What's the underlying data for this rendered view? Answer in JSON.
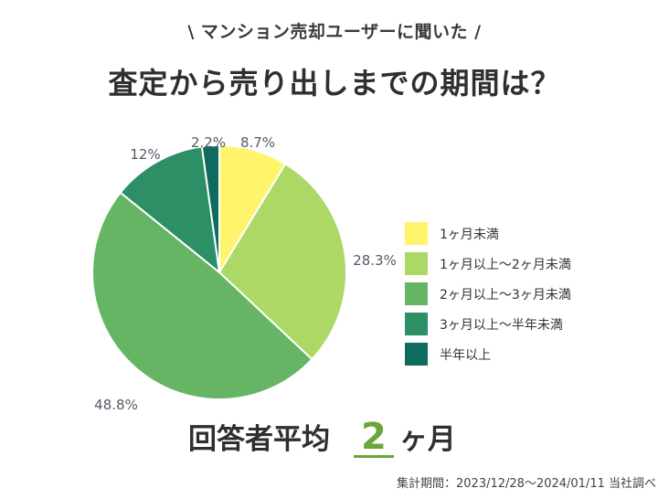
{
  "header": {
    "subtitle": "\\ マンション売却ユーザーに聞いた /",
    "title": "査定から売り出しまでの期間は？"
  },
  "chart_data": {
    "type": "pie",
    "title": "査定から売り出しまでの期間は？",
    "slices": [
      {
        "label": "1ヶ月未満",
        "value": 8.7,
        "display": "8.7%",
        "color": "#fff46b"
      },
      {
        "label": "1ヶ月以上～2ヶ月未満",
        "value": 28.3,
        "display": "28.3%",
        "color": "#acd965"
      },
      {
        "label": "2ヶ月以上～3ヶ月未満",
        "value": 48.8,
        "display": "48.8%",
        "color": "#66b564"
      },
      {
        "label": "3ヶ月以上～半年未満",
        "value": 12,
        "display": "12%",
        "color": "#2c8f66"
      },
      {
        "label": "半年以上",
        "value": 2.2,
        "display": "2.2%",
        "color": "#0f6b5e"
      }
    ],
    "legend_position": "right",
    "start": "12 o'clock",
    "direction": "clockwise"
  },
  "average": {
    "label": "回答者平均",
    "value": "2",
    "unit": "ヶ月"
  },
  "footnote": "集計期間：2023/12/28～2024/01/11 当社調べ"
}
